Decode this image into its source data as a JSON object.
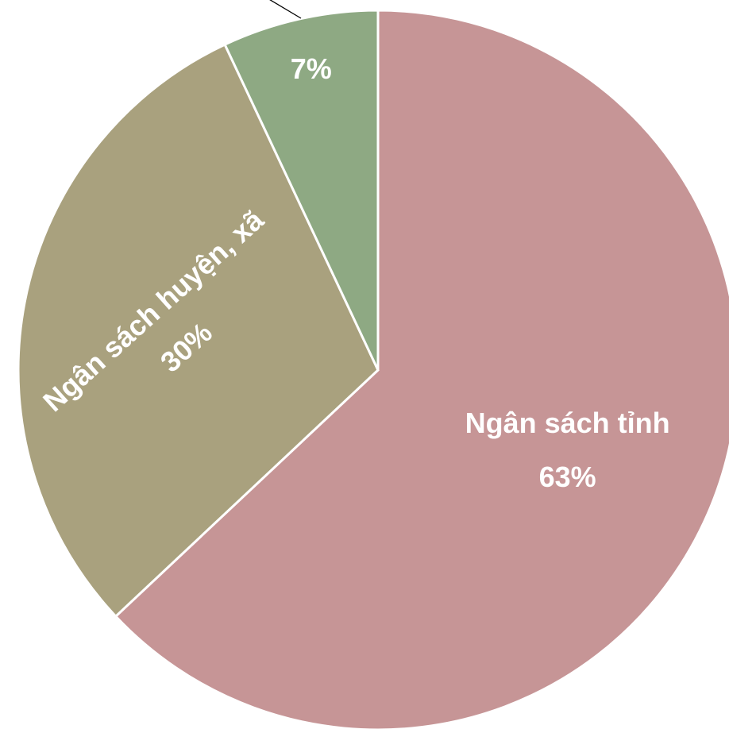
{
  "chart_data": {
    "type": "pie",
    "start": "12 o'clock",
    "direction": "clockwise",
    "slices": [
      {
        "name": "Ngân sách tỉnh",
        "value": 63,
        "value_label": "63%",
        "color": "#c69596"
      },
      {
        "name": "Ngân sách huyện, xã",
        "value": 30,
        "value_label": "30%",
        "color": "#a9a17e"
      },
      {
        "name": "",
        "value": 7,
        "value_label": "7%",
        "color": "#8ea983"
      }
    ]
  }
}
